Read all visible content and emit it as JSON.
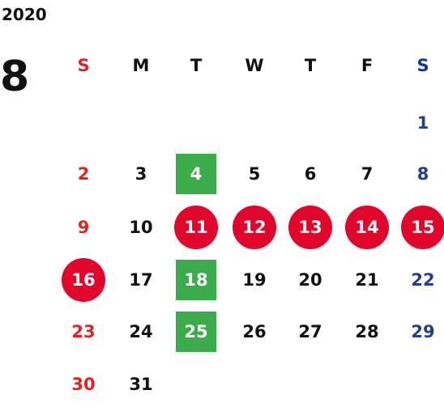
{
  "year": "2020",
  "month": "8",
  "weekdays": [
    "S",
    "M",
    "T",
    "W",
    "T",
    "F",
    "S"
  ],
  "weekday_colors": [
    "#dd2323",
    "#111111",
    "#111111",
    "#111111",
    "#111111",
    "#111111",
    "#1034a6"
  ],
  "day_colors": [
    "#dd2323",
    "#111111",
    "#111111",
    "#111111",
    "#111111",
    "#111111",
    "#1f3f8f"
  ],
  "styles": {
    "square": "#3aad4a",
    "circle": "#e2062b"
  },
  "weeks": [
    [
      null,
      null,
      null,
      null,
      null,
      null,
      "1"
    ],
    [
      "2",
      "3",
      {
        "day": "4",
        "shape": "square"
      },
      "5",
      "6",
      "7",
      "8"
    ],
    [
      "9",
      "10",
      {
        "day": "11",
        "shape": "circle"
      },
      {
        "day": "12",
        "shape": "circle"
      },
      {
        "day": "13",
        "shape": "circle"
      },
      {
        "day": "14",
        "shape": "circle"
      },
      {
        "day": "15",
        "shape": "circle"
      }
    ],
    [
      {
        "day": "16",
        "shape": "circle"
      },
      "17",
      {
        "day": "18",
        "shape": "square"
      },
      "19",
      "20",
      "21",
      "22"
    ],
    [
      "23",
      "24",
      {
        "day": "25",
        "shape": "square"
      },
      "26",
      "27",
      "28",
      "29"
    ],
    [
      "30",
      "31",
      null,
      null,
      null,
      null,
      null
    ]
  ]
}
